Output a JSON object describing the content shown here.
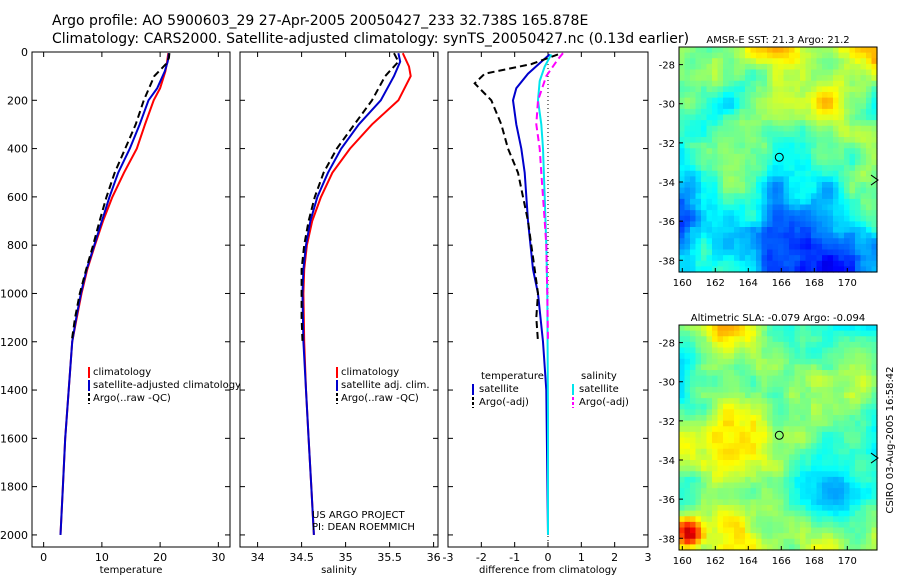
{
  "header": {
    "line1": "Argo profile: AO 5900603_29 27-Apr-2005 20050427_233 32.738S 165.878E",
    "line2": "Climatology: CARS2000. Satellite-adjusted climatology: synTS_20050427.nc (0.13d earlier)"
  },
  "credit": {
    "project": "US ARGO PROJECT",
    "pi": "PI: DEAN ROEMMICH",
    "stamp": "CSIRO 03-Aug-2005 16:58:42"
  },
  "colors": {
    "climatology": "#ff0000",
    "satellite": "#0000cc",
    "argo": "#000000",
    "sal_satellite": "#00e5ee",
    "sal_argo": "#ff00ff"
  },
  "chart_data": [
    {
      "type": "line",
      "id": "temperature",
      "xlabel": "temperature",
      "ylabel": "",
      "xlim": [
        -2,
        32
      ],
      "ylim": [
        2050,
        0
      ],
      "xticks": [
        "0",
        "10",
        "20",
        "30"
      ],
      "yticks": [
        "0",
        "200",
        "400",
        "600",
        "800",
        "1000",
        "1200",
        "1400",
        "1600",
        "1800",
        "2000"
      ],
      "legend": [
        "climatology",
        "satellite-adjusted climatology",
        "Argo(..raw -QC)"
      ],
      "series": [
        {
          "name": "climatology",
          "color": "#ff0000",
          "dash": "solid",
          "points": [
            [
              21.4,
              5
            ],
            [
              21.2,
              40
            ],
            [
              20.9,
              80
            ],
            [
              20.0,
              150
            ],
            [
              18.9,
              200
            ],
            [
              17.4,
              300
            ],
            [
              16.0,
              400
            ],
            [
              13.8,
              500
            ],
            [
              11.8,
              600
            ],
            [
              10.2,
              700
            ],
            [
              8.8,
              800
            ],
            [
              7.5,
              900
            ],
            [
              6.5,
              1000
            ],
            [
              5.7,
              1100
            ],
            [
              4.9,
              1200
            ],
            [
              4.3,
              1400
            ],
            [
              3.7,
              1600
            ],
            [
              3.3,
              1800
            ],
            [
              2.9,
              2000
            ]
          ]
        },
        {
          "name": "satellite-adjusted climatology",
          "color": "#0000cc",
          "dash": "solid",
          "points": [
            [
              21.5,
              5
            ],
            [
              21.3,
              40
            ],
            [
              20.8,
              80
            ],
            [
              19.5,
              150
            ],
            [
              18.0,
              200
            ],
            [
              16.5,
              300
            ],
            [
              14.8,
              400
            ],
            [
              12.8,
              500
            ],
            [
              11.3,
              600
            ],
            [
              10.0,
              700
            ],
            [
              8.7,
              800
            ],
            [
              7.4,
              900
            ],
            [
              6.4,
              1000
            ],
            [
              5.6,
              1100
            ],
            [
              4.9,
              1200
            ],
            [
              4.3,
              1400
            ],
            [
              3.7,
              1600
            ],
            [
              3.3,
              1800
            ],
            [
              2.9,
              2000
            ]
          ]
        },
        {
          "name": "Argo(..raw -QC)",
          "color": "#000000",
          "dash": "dash",
          "points": [
            [
              21.6,
              5
            ],
            [
              21.5,
              25
            ],
            [
              21.0,
              50
            ],
            [
              19.0,
              100
            ],
            [
              17.2,
              200
            ],
            [
              15.8,
              300
            ],
            [
              14.0,
              400
            ],
            [
              12.2,
              500
            ],
            [
              10.8,
              600
            ],
            [
              9.6,
              700
            ],
            [
              8.5,
              800
            ],
            [
              7.3,
              900
            ],
            [
              6.2,
              1000
            ],
            [
              5.4,
              1100
            ],
            [
              4.8,
              1200
            ]
          ]
        }
      ]
    },
    {
      "type": "line",
      "id": "salinity",
      "xlabel": "salinity",
      "ylabel": "",
      "xlim": [
        33.8,
        36.05
      ],
      "ylim": [
        2050,
        0
      ],
      "xticks": [
        "34",
        "34.5",
        "35",
        "35.5",
        "36"
      ],
      "legend": [
        "climatology",
        "satellite adj. clim.",
        "Argo(..raw -QC)"
      ],
      "series": [
        {
          "name": "climatology",
          "color": "#ff0000",
          "dash": "solid",
          "points": [
            [
              35.65,
              5
            ],
            [
              35.72,
              60
            ],
            [
              35.74,
              100
            ],
            [
              35.6,
              200
            ],
            [
              35.3,
              300
            ],
            [
              35.05,
              400
            ],
            [
              34.85,
              500
            ],
            [
              34.72,
              600
            ],
            [
              34.62,
              700
            ],
            [
              34.56,
              800
            ],
            [
              34.53,
              900
            ],
            [
              34.52,
              1000
            ],
            [
              34.53,
              1200
            ],
            [
              34.55,
              1400
            ],
            [
              34.58,
              1600
            ],
            [
              34.61,
              1800
            ],
            [
              34.64,
              2000
            ]
          ]
        },
        {
          "name": "satellite adj. clim.",
          "color": "#0000cc",
          "dash": "solid",
          "points": [
            [
              35.6,
              5
            ],
            [
              35.62,
              40
            ],
            [
              35.55,
              100
            ],
            [
              35.4,
              200
            ],
            [
              35.15,
              300
            ],
            [
              34.95,
              400
            ],
            [
              34.8,
              500
            ],
            [
              34.68,
              600
            ],
            [
              34.6,
              700
            ],
            [
              34.55,
              800
            ],
            [
              34.52,
              900
            ],
            [
              34.51,
              1000
            ],
            [
              34.52,
              1200
            ],
            [
              34.55,
              1400
            ],
            [
              34.58,
              1600
            ],
            [
              34.61,
              1800
            ],
            [
              34.64,
              2000
            ]
          ]
        },
        {
          "name": "Argo(..raw -QC)",
          "color": "#000000",
          "dash": "dash",
          "points": [
            [
              35.55,
              5
            ],
            [
              35.6,
              40
            ],
            [
              35.45,
              100
            ],
            [
              35.3,
              200
            ],
            [
              35.1,
              300
            ],
            [
              34.9,
              400
            ],
            [
              34.75,
              500
            ],
            [
              34.65,
              600
            ],
            [
              34.58,
              700
            ],
            [
              34.53,
              800
            ],
            [
              34.5,
              900
            ],
            [
              34.5,
              1000
            ],
            [
              34.5,
              1100
            ],
            [
              34.51,
              1200
            ]
          ]
        }
      ]
    },
    {
      "type": "line",
      "id": "difference",
      "xlabel": "difference from climatology",
      "ylabel": "",
      "xlim": [
        -3,
        3
      ],
      "ylim": [
        2050,
        0
      ],
      "xticks": [
        "-3",
        "-2",
        "-1",
        "0",
        "1",
        "2",
        "3"
      ],
      "legend_left_title": "temperature",
      "legend_left": [
        "satellite",
        "Argo(-adj)"
      ],
      "legend_right_title": "salinity",
      "legend_right": [
        "satellite",
        "Argo(-adj)"
      ],
      "series": [
        {
          "name": "temperature satellite",
          "color": "#0000cc",
          "dash": "solid",
          "points": [
            [
              0.05,
              10
            ],
            [
              -0.2,
              40
            ],
            [
              -0.6,
              90
            ],
            [
              -0.95,
              150
            ],
            [
              -1.05,
              200
            ],
            [
              -0.95,
              300
            ],
            [
              -0.8,
              400
            ],
            [
              -0.7,
              500
            ],
            [
              -0.6,
              700
            ],
            [
              -0.45,
              900
            ],
            [
              -0.3,
              1000
            ],
            [
              -0.15,
              1200
            ],
            [
              -0.05,
              1400
            ],
            [
              0,
              2000
            ]
          ]
        },
        {
          "name": "temperature Argo(-adj)",
          "color": "#000000",
          "dash": "dash",
          "points": [
            [
              0.3,
              10
            ],
            [
              -0.5,
              50
            ],
            [
              -1.9,
              90
            ],
            [
              -2.2,
              130
            ],
            [
              -1.7,
              200
            ],
            [
              -1.4,
              300
            ],
            [
              -1.2,
              400
            ],
            [
              -0.9,
              500
            ],
            [
              -0.75,
              600
            ],
            [
              -0.6,
              700
            ],
            [
              -0.5,
              800
            ],
            [
              -0.4,
              900
            ],
            [
              -0.3,
              1000
            ],
            [
              -0.35,
              1100
            ],
            [
              -0.3,
              1200
            ]
          ]
        },
        {
          "name": "salinity satellite",
          "color": "#00e5ee",
          "dash": "solid",
          "points": [
            [
              0.1,
              10
            ],
            [
              -0.1,
              60
            ],
            [
              -0.25,
              120
            ],
            [
              -0.3,
              200
            ],
            [
              -0.2,
              300
            ],
            [
              -0.15,
              400
            ],
            [
              -0.1,
              600
            ],
            [
              -0.05,
              800
            ],
            [
              -0.02,
              1000
            ],
            [
              0,
              1500
            ],
            [
              0,
              2000
            ]
          ]
        },
        {
          "name": "salinity Argo(-adj)",
          "color": "#ff00ff",
          "dash": "dash",
          "points": [
            [
              0.45,
              5
            ],
            [
              0.3,
              30
            ],
            [
              -0.05,
              100
            ],
            [
              -0.3,
              200
            ],
            [
              -0.35,
              300
            ],
            [
              -0.25,
              400
            ],
            [
              -0.2,
              500
            ],
            [
              -0.15,
              600
            ],
            [
              -0.1,
              700
            ],
            [
              -0.05,
              800
            ],
            [
              -0.02,
              1000
            ],
            [
              0,
              1200
            ]
          ]
        }
      ]
    },
    {
      "type": "heatmap",
      "id": "sst-map",
      "title": "AMSR-E SST: 21.3 Argo: 21.2",
      "xlim": [
        159.8,
        171.8
      ],
      "ylim": [
        -38.6,
        -27.1
      ],
      "xticks": [
        "160",
        "162",
        "164",
        "166",
        "168",
        "170"
      ],
      "yticks": [
        "-28",
        "-30",
        "-32",
        "-34",
        "-36",
        "-38"
      ],
      "marker": [
        165.878,
        -32.738
      ]
    },
    {
      "type": "heatmap",
      "id": "sla-map",
      "title": "Altimetric SLA: -0.079 Argo: -0.094",
      "xlim": [
        159.8,
        171.8
      ],
      "ylim": [
        -38.6,
        -27.1
      ],
      "xticks": [
        "160",
        "162",
        "164",
        "166",
        "168",
        "170"
      ],
      "yticks": [
        "-28",
        "-30",
        "-32",
        "-34",
        "-36",
        "-38"
      ],
      "marker": [
        165.878,
        -32.738
      ]
    }
  ]
}
